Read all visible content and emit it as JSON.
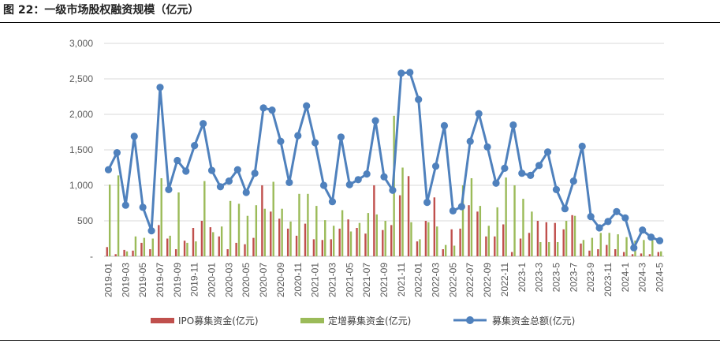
{
  "figure": {
    "title": "图 22：一级市场股权融资规模（亿元）"
  },
  "colors": {
    "ipo": "#c0504d",
    "placement": "#9bbb59",
    "total": "#4f81bd",
    "grid": "#d9d9d9",
    "axis": "#bfbfbf"
  },
  "chart_data": {
    "type": "bar",
    "title": "",
    "xlabel": "",
    "ylabel": "",
    "ylim": [
      0,
      3000
    ],
    "yticks": [
      "-",
      "500",
      "1,000",
      "1,500",
      "2,000",
      "2,500",
      "3,000"
    ],
    "ytick_values": [
      0,
      500,
      1000,
      1500,
      2000,
      2500,
      3000
    ],
    "grid": true,
    "legend_position": "bottom",
    "categories": [
      "2019-01",
      "2019-02",
      "2019-03",
      "2019-04",
      "2019-05",
      "2019-06",
      "2019-07",
      "2019-08",
      "2019-09",
      "2019-10",
      "2019-11",
      "2019-12",
      "2020-01",
      "2020-02",
      "2020-03",
      "2020-04",
      "2020-05",
      "2020-06",
      "2020-07",
      "2020-08",
      "2020-09",
      "2020-10",
      "2020-11",
      "2020-12",
      "2021-01",
      "2021-02",
      "2021-03",
      "2021-04",
      "2021-05",
      "2021-06",
      "2021-07",
      "2021-08",
      "2021-09",
      "2021-10",
      "2021-11",
      "2021-12",
      "2022-01",
      "2022-02",
      "2022-03",
      "2022-04",
      "2022-05",
      "2022-06",
      "2022-07",
      "2022-08",
      "2022-09",
      "2022-10",
      "2022-11",
      "2022-12",
      "2023-1",
      "2023-2",
      "2023-3",
      "2023-4",
      "2023-5",
      "2023-6",
      "2023-7",
      "2023-8",
      "2023-9",
      "2023-10",
      "2023-11",
      "2023-12",
      "2024-1",
      "2024-2",
      "2024-3",
      "2024-4",
      "2024-5"
    ],
    "xtick_labels": [
      "2019-01",
      "2019-03",
      "2019-05",
      "2019-07",
      "2019-09",
      "2019-11",
      "2020-01",
      "2020-03",
      "2020-05",
      "2020-07",
      "2020-09",
      "2020-11",
      "2021-01",
      "2021-03",
      "2021-05",
      "2021-07",
      "2021-09",
      "2021-11",
      "2022-01",
      "2022-03",
      "2022-05",
      "2022-07",
      "2022-09",
      "2022-11",
      "2023-1",
      "2023-3",
      "2023-5",
      "2023-7",
      "2023-9",
      "2023-11",
      "2024-1",
      "2024-3",
      "2024-5"
    ],
    "series": [
      {
        "name": "IPO募集资金(亿元)",
        "kind": "bar",
        "values": [
          130,
          30,
          90,
          80,
          190,
          100,
          440,
          250,
          100,
          220,
          400,
          500,
          410,
          280,
          100,
          190,
          170,
          260,
          1000,
          630,
          530,
          390,
          290,
          460,
          240,
          230,
          240,
          390,
          520,
          400,
          320,
          1000,
          370,
          440,
          860,
          1130,
          210,
          500,
          830,
          100,
          380,
          390,
          720,
          630,
          280,
          280,
          450,
          60,
          250,
          330,
          500,
          480,
          470,
          380,
          580,
          180,
          80,
          100,
          160,
          100,
          60,
          30,
          40,
          30,
          60
        ],
        "color_key": "ipo"
      },
      {
        "name": "定增募集资金(亿元)",
        "kind": "bar",
        "values": [
          1010,
          1140,
          70,
          280,
          260,
          250,
          1100,
          290,
          900,
          190,
          210,
          1060,
          340,
          420,
          780,
          740,
          570,
          720,
          670,
          1050,
          670,
          490,
          880,
          880,
          710,
          510,
          430,
          650,
          350,
          470,
          610,
          590,
          500,
          1980,
          1250,
          480,
          240,
          480,
          420,
          160,
          150,
          1000,
          1100,
          710,
          430,
          690,
          1110,
          1000,
          810,
          630,
          200,
          200,
          200,
          500,
          570,
          230,
          260,
          330,
          330,
          310,
          270,
          220,
          230,
          260,
          70
        ]
      },
      {
        "name": "募集资金总额(亿元)",
        "kind": "line",
        "values": [
          1220,
          1460,
          720,
          1690,
          690,
          360,
          2380,
          940,
          1350,
          1200,
          1560,
          1870,
          1210,
          980,
          1060,
          1220,
          900,
          1170,
          2090,
          2060,
          1620,
          1040,
          1700,
          2120,
          1600,
          1000,
          770,
          1680,
          1010,
          1080,
          1160,
          1910,
          1120,
          930,
          2580,
          2590,
          2210,
          760,
          1270,
          1840,
          640,
          700,
          1620,
          2010,
          1540,
          1030,
          1240,
          1850,
          1170,
          1140,
          1280,
          1470,
          940,
          670,
          1060,
          1550,
          560,
          400,
          490,
          630,
          540,
          120,
          370,
          270,
          220
        ]
      }
    ]
  }
}
